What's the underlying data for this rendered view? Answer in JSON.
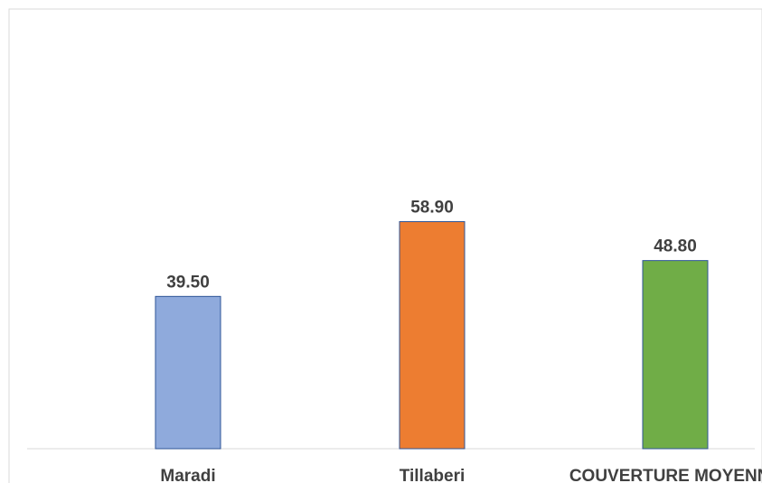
{
  "chart_data": {
    "type": "bar",
    "categories": [
      "Maradi",
      "Tillaberi",
      "COUVERTURE MOYENNE"
    ],
    "values": [
      39.5,
      58.9,
      48.8
    ],
    "value_labels": [
      "39.50",
      "58.90",
      "48.80"
    ],
    "colors": [
      "#8FAADC",
      "#ED7D31",
      "#70AD47"
    ],
    "bar_border_color": "#2F5597",
    "title": "",
    "xlabel": "",
    "ylabel": "",
    "ylim": [
      0,
      100
    ],
    "grid": false,
    "legend": "none"
  }
}
